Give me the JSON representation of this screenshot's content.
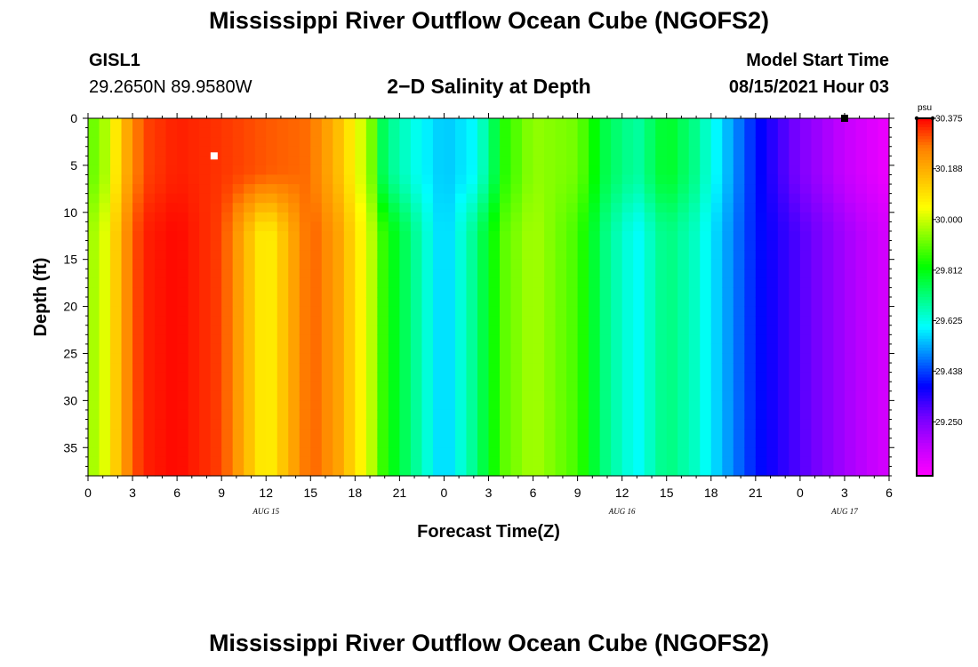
{
  "header": {
    "title": "Mississippi River Outflow Ocean Cube (NGOFS2)",
    "station_id": "GISL1",
    "station_coords": "29.2650N  89.9580W",
    "subtitle": "2−D Salinity at Depth",
    "model_start_label": "Model Start Time",
    "model_start_value": "08/15/2021 Hour 03"
  },
  "footer": {
    "title": "Mississippi River Outflow Ocean Cube (NGOFS2)"
  },
  "colors": {
    "palette": [
      "#ff00ff",
      "#c000ff",
      "#7000ff",
      "#0000ff",
      "#0080ff",
      "#00ffff",
      "#00ff80",
      "#00ff00",
      "#80ff00",
      "#ffff00",
      "#ffc000",
      "#ff8000",
      "#ff0000"
    ]
  },
  "chart_data": {
    "type": "heatmap",
    "xlabel": "Forecast Time(Z)",
    "ylabel": "Depth (ft)",
    "colorbar_unit": "psu",
    "x_range_hours": [
      0,
      54
    ],
    "y_range_ft": [
      0,
      38
    ],
    "y_inverted": true,
    "x_tick_labels": [
      "0",
      "3",
      "6",
      "9",
      "12",
      "15",
      "18",
      "21",
      "0",
      "3",
      "6",
      "9",
      "12",
      "15",
      "18",
      "21",
      "0",
      "3",
      "6"
    ],
    "y_ticks": [
      0,
      5,
      10,
      15,
      20,
      25,
      30,
      35
    ],
    "date_labels": [
      {
        "text": "AUG 15",
        "hour": 12
      },
      {
        "text": "AUG 16",
        "hour": 36
      },
      {
        "text": "AUG 17",
        "hour": 51
      }
    ],
    "colorbar_labels": [
      "30.375",
      "30.188",
      "30.000",
      "29.812",
      "29.625",
      "29.438",
      "29.250"
    ],
    "color_range_psu": [
      29.05,
      30.375
    ],
    "salinity_profile_psu": [
      {
        "hour": 0,
        "surface": 29.9,
        "deep": 29.95
      },
      {
        "hour": 1,
        "surface": 29.95,
        "deep": 30.0
      },
      {
        "hour": 2,
        "surface": 30.1,
        "deep": 30.15
      },
      {
        "hour": 3,
        "surface": 30.25,
        "deep": 30.3
      },
      {
        "hour": 4,
        "surface": 30.32,
        "deep": 30.35
      },
      {
        "hour": 6,
        "surface": 30.35,
        "deep": 30.37
      },
      {
        "hour": 9,
        "surface": 30.33,
        "deep": 30.32
      },
      {
        "hour": 12,
        "surface": 30.3,
        "deep": 30.05
      },
      {
        "hour": 15,
        "surface": 30.28,
        "deep": 30.3
      },
      {
        "hour": 17,
        "surface": 30.15,
        "deep": 30.2
      },
      {
        "hour": 18,
        "surface": 30.05,
        "deep": 30.1
      },
      {
        "hour": 19,
        "surface": 29.95,
        "deep": 30.0
      },
      {
        "hour": 20,
        "surface": 29.72,
        "deep": 29.85
      },
      {
        "hour": 22,
        "surface": 29.62,
        "deep": 29.7
      },
      {
        "hour": 24,
        "surface": 29.55,
        "deep": 29.55
      },
      {
        "hour": 26,
        "surface": 29.6,
        "deep": 29.7
      },
      {
        "hour": 27,
        "surface": 29.7,
        "deep": 29.8
      },
      {
        "hour": 28,
        "surface": 29.85,
        "deep": 29.9
      },
      {
        "hour": 30,
        "surface": 29.95,
        "deep": 29.97
      },
      {
        "hour": 33,
        "surface": 29.92,
        "deep": 29.88
      },
      {
        "hour": 35,
        "surface": 29.75,
        "deep": 29.7
      },
      {
        "hour": 37,
        "surface": 29.68,
        "deep": 29.6
      },
      {
        "hour": 39,
        "surface": 29.8,
        "deep": 29.72
      },
      {
        "hour": 41,
        "surface": 29.7,
        "deep": 29.65
      },
      {
        "hour": 45,
        "surface": 29.4,
        "deep": 29.4
      },
      {
        "hour": 48,
        "surface": 29.25,
        "deep": 29.3
      },
      {
        "hour": 51,
        "surface": 29.15,
        "deep": 29.2
      },
      {
        "hour": 54,
        "surface": 29.08,
        "deep": 29.12
      }
    ],
    "markers": [
      {
        "hour": 8.5,
        "depth_ft": 4,
        "color": "#ffffff"
      },
      {
        "hour": 51,
        "depth_ft": 0,
        "color": "#000000"
      }
    ]
  }
}
